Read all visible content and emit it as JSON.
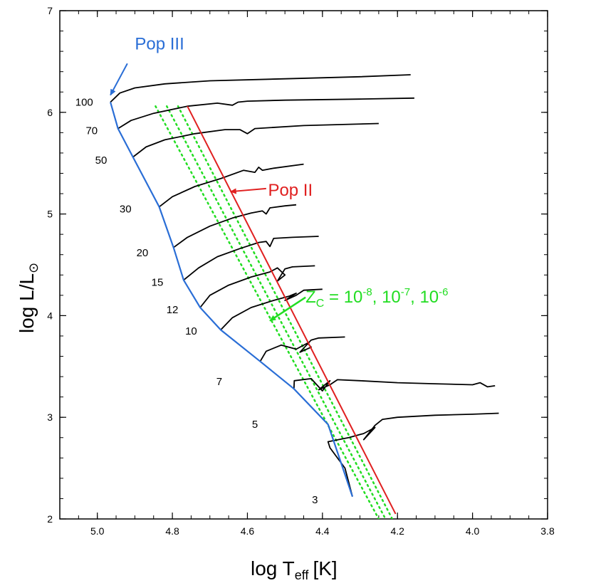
{
  "chart_data": {
    "type": "line",
    "title": "",
    "xlabel": "log T_eff [K]",
    "xlabel_main": "log T",
    "xlabel_sub": "eff",
    "xlabel_unit": "[K]",
    "ylabel": "log L/L⊙",
    "ylabel_main": "log L/L",
    "ylabel_sub": "⊙",
    "xlim": [
      5.1,
      3.8
    ],
    "ylim": [
      2,
      7
    ],
    "x_reversed": true,
    "x_ticks": [
      5.0,
      4.8,
      4.6,
      4.4,
      4.2,
      4.0,
      3.8
    ],
    "x_tick_labels": [
      "5.0",
      "4.8",
      "4.6",
      "4.4",
      "4.2",
      "4.0",
      "3.8"
    ],
    "y_ticks": [
      2,
      3,
      4,
      5,
      6,
      7
    ],
    "y_tick_labels": [
      "2",
      "3",
      "4",
      "5",
      "6",
      "7"
    ],
    "grid": false,
    "colors": {
      "pop3": "#2a6ed6",
      "pop2": "#e02020",
      "zc": "#22dd22",
      "tracks": "#000000"
    },
    "zams_pop3": {
      "name": "Pop III ZAMS",
      "x": [
        4.965,
        4.945,
        4.905,
        4.835,
        4.797,
        4.77,
        4.726,
        4.671,
        4.566,
        4.476,
        4.385,
        4.32
      ],
      "y": [
        6.1,
        5.84,
        5.56,
        5.07,
        4.67,
        4.35,
        4.08,
        3.86,
        3.55,
        3.28,
        2.93,
        2.22
      ]
    },
    "zams_pop2": {
      "name": "Pop II ZAMS",
      "x": [
        4.76,
        4.205
      ],
      "y": [
        6.06,
        2.05
      ]
    },
    "zams_zc": [
      {
        "name": "Zc = 1e-8",
        "x": [
          4.845,
          4.25
        ],
        "y": [
          6.06,
          2.0
        ]
      },
      {
        "name": "Zc = 1e-7",
        "x": [
          4.815,
          4.232
        ],
        "y": [
          6.06,
          2.0
        ]
      },
      {
        "name": "Zc = 1e-6",
        "x": [
          4.785,
          4.214
        ],
        "y": [
          6.06,
          2.0
        ]
      }
    ],
    "tracks": [
      {
        "mass": "100",
        "x": [
          4.965,
          4.94,
          4.9,
          4.82,
          4.7,
          4.5,
          4.3,
          4.165
        ],
        "y": [
          6.1,
          6.19,
          6.24,
          6.28,
          6.31,
          6.33,
          6.35,
          6.37
        ]
      },
      {
        "mass": "70",
        "x": [
          4.945,
          4.91,
          4.85,
          4.76,
          4.68,
          4.64,
          4.625,
          4.6,
          4.5,
          4.3,
          4.155
        ],
        "y": [
          5.84,
          5.92,
          5.99,
          6.06,
          6.09,
          6.07,
          6.1,
          6.11,
          6.12,
          6.13,
          6.14
        ]
      },
      {
        "mass": "50",
        "x": [
          4.905,
          4.87,
          4.82,
          4.74,
          4.66,
          4.62,
          4.6,
          4.58,
          4.45,
          4.25
        ],
        "y": [
          5.56,
          5.66,
          5.73,
          5.79,
          5.83,
          5.83,
          5.79,
          5.84,
          5.87,
          5.89
        ]
      },
      {
        "mass": "30",
        "x": [
          4.835,
          4.8,
          4.74,
          4.67,
          4.61,
          4.58,
          4.57,
          4.56,
          4.53,
          4.45
        ],
        "y": [
          5.07,
          5.17,
          5.27,
          5.35,
          5.43,
          5.41,
          5.46,
          5.43,
          5.45,
          5.49
        ]
      },
      {
        "mass": "20",
        "x": [
          4.797,
          4.76,
          4.7,
          4.64,
          4.59,
          4.56,
          4.55,
          4.54,
          4.5,
          4.47
        ],
        "y": [
          4.67,
          4.77,
          4.88,
          4.96,
          5.01,
          5.03,
          5.0,
          5.06,
          5.08,
          5.09
        ]
      },
      {
        "mass": "15",
        "x": [
          4.77,
          4.73,
          4.68,
          4.62,
          4.57,
          4.55,
          4.54,
          4.53,
          4.48,
          4.41
        ],
        "y": [
          4.35,
          4.47,
          4.58,
          4.66,
          4.72,
          4.73,
          4.68,
          4.76,
          4.77,
          4.78
        ]
      },
      {
        "mass": "12",
        "x": [
          4.726,
          4.7,
          4.65,
          4.59,
          4.54,
          4.52,
          4.5,
          4.52,
          4.5,
          4.48,
          4.42
        ],
        "y": [
          4.08,
          4.2,
          4.3,
          4.38,
          4.43,
          4.47,
          4.4,
          4.34,
          4.46,
          4.48,
          4.49
        ]
      },
      {
        "mass": "10",
        "x": [
          4.671,
          4.64,
          4.59,
          4.53,
          4.49,
          4.47,
          4.5,
          4.47,
          4.45,
          4.4
        ],
        "y": [
          3.86,
          3.98,
          4.08,
          4.15,
          4.19,
          4.22,
          4.15,
          4.2,
          4.25,
          4.26
        ]
      },
      {
        "mass": "7",
        "x": [
          4.566,
          4.55,
          4.51,
          4.47,
          4.44,
          4.43,
          4.46,
          4.43,
          4.41,
          4.34
        ],
        "y": [
          3.55,
          3.65,
          3.71,
          3.67,
          3.73,
          3.69,
          3.64,
          3.76,
          3.78,
          3.79
        ]
      },
      {
        "mass": "5",
        "x": [
          4.476,
          4.475,
          4.43,
          4.4,
          4.38,
          4.41,
          4.38,
          4.36,
          4.3,
          4.2,
          4.1,
          4.0,
          3.98,
          3.96,
          3.94
        ],
        "y": [
          3.28,
          3.36,
          3.38,
          3.26,
          3.36,
          3.27,
          3.32,
          3.37,
          3.36,
          3.34,
          3.33,
          3.32,
          3.34,
          3.3,
          3.31
        ]
      },
      {
        "mass": "3",
        "x": [
          4.32,
          4.34,
          4.38,
          4.385,
          4.33,
          4.29,
          4.26,
          4.29,
          4.26,
          4.24,
          4.2,
          4.1,
          4.0,
          3.93
        ],
        "y": [
          2.22,
          2.5,
          2.7,
          2.76,
          2.8,
          2.84,
          2.9,
          2.78,
          2.92,
          2.98,
          3.0,
          3.02,
          3.03,
          3.04
        ]
      }
    ],
    "mass_labels": [
      {
        "text": "100",
        "x": 5.035,
        "y": 6.1
      },
      {
        "text": "70",
        "x": 5.015,
        "y": 5.82
      },
      {
        "text": "50",
        "x": 4.99,
        "y": 5.53
      },
      {
        "text": "30",
        "x": 4.925,
        "y": 5.05
      },
      {
        "text": "20",
        "x": 4.88,
        "y": 4.62
      },
      {
        "text": "15",
        "x": 4.84,
        "y": 4.33
      },
      {
        "text": "12",
        "x": 4.8,
        "y": 4.06
      },
      {
        "text": "10",
        "x": 4.75,
        "y": 3.85
      },
      {
        "text": "7",
        "x": 4.675,
        "y": 3.35
      },
      {
        "text": "5",
        "x": 4.58,
        "y": 2.93
      },
      {
        "text": "3",
        "x": 4.42,
        "y": 2.19
      }
    ],
    "annotations": [
      {
        "id": "pop3",
        "text": "Pop III",
        "color": "#2a6ed6",
        "text_x": 4.9,
        "text_y": 6.62,
        "arrow_from": [
          4.92,
          6.48
        ],
        "arrow_to": [
          4.965,
          6.17
        ]
      },
      {
        "id": "pop2",
        "text": "Pop II",
        "color": "#e02020",
        "text_x": 4.545,
        "text_y": 5.18,
        "arrow_from": [
          4.55,
          5.25
        ],
        "arrow_to": [
          4.645,
          5.22
        ]
      },
      {
        "id": "zc",
        "text_main": "Z",
        "text_sub": "C",
        "text_rest_1": " = 10",
        "exp1": "-8",
        "sep1": ", 10",
        "exp2": "-7",
        "sep2": ", 10",
        "exp3": "-6",
        "color": "#22dd22",
        "text_x": 4.445,
        "text_y": 4.13,
        "arrow_from": [
          4.445,
          4.18
        ],
        "arrow_to": [
          4.54,
          3.95
        ]
      }
    ]
  }
}
